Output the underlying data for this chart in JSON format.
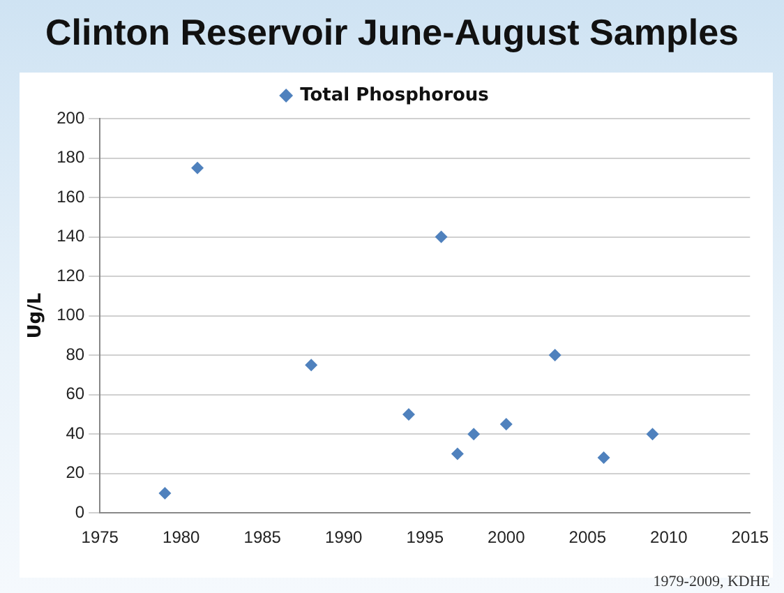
{
  "chart_data": {
    "type": "scatter",
    "title": "Clinton Reservoir June-August Samples",
    "ylabel": "Ug/L",
    "series": [
      {
        "name": "Total Phosphorous",
        "color": "#4f81bd",
        "x": [
          1979,
          1981,
          1988,
          1994,
          1996,
          1997,
          1998,
          2000,
          2003,
          2006,
          2009
        ],
        "values": [
          10,
          175,
          75,
          50,
          140,
          30,
          40,
          45,
          80,
          28,
          40
        ]
      }
    ],
    "xlim": [
      1975,
      2015
    ],
    "xticks": [
      1975,
      1980,
      1985,
      1990,
      1995,
      2000,
      2005,
      2010,
      2015
    ],
    "ylim": [
      0,
      200
    ],
    "yticks": [
      0,
      20,
      40,
      60,
      80,
      100,
      120,
      140,
      160,
      180,
      200
    ],
    "grid": "y",
    "legend": "top",
    "marker": "diamond",
    "annotations": [
      "1979-2009, KDHE"
    ]
  }
}
